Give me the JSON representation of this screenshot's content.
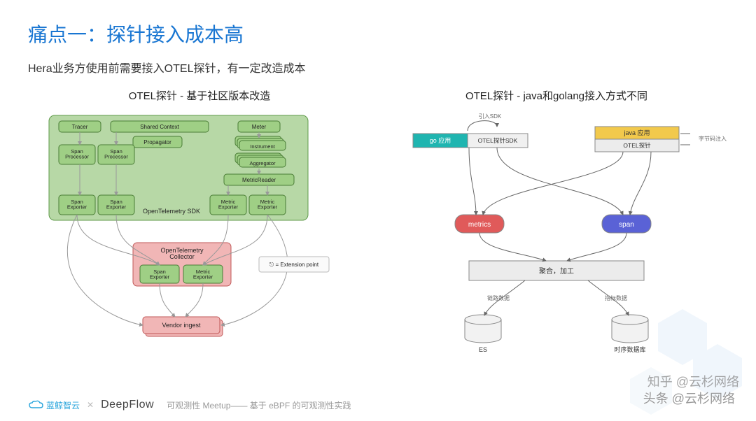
{
  "title": "痛点一：探针接入成本高",
  "subtitle": "Hera业务方使用前需要接入OTEL探针，有一定改造成本",
  "left": {
    "heading": "OTEL探针 - 基于社区版本改造",
    "colors": {
      "sdkFill": "#b7d8a6",
      "sdkStroke": "#5f9a4a",
      "boxFill": "#9fcf85",
      "boxStroke": "#4a7c36",
      "collFill": "#f1b6b6",
      "collStroke": "#c05858",
      "note": "#fafafa"
    },
    "boxes": {
      "tracer": "Tracer",
      "sharedCtx": "Shared Context",
      "meter": "Meter",
      "propagator": "Propagator",
      "spanProc1": "Span\nProcessor",
      "spanProc2": "Span\nProcessor",
      "instrument": "Instrument",
      "aggregator": "Aggregator",
      "metricReader": "MetricReader",
      "spanExp1": "Span\nExporter",
      "spanExp2": "Span\nExporter",
      "metricExp1": "Metric\nExporter",
      "metricExp2": "Metric\nExporter",
      "sdkLabel": "OpenTelemetry SDK",
      "collector": "OpenTelemetry\nCollector",
      "cSpanExp": "Span\nExporter",
      "cMetricExp": "Metric\nExporter",
      "vendor": "Vendor ingest",
      "extNote": "⎋ = Extension point"
    }
  },
  "right": {
    "heading": "OTEL探针 - java和golang接入方式不同",
    "colors": {
      "goFill": "#1fb5b0",
      "sdkFill": "#f0f0f0",
      "javaFill": "#f2c94c",
      "otelFill": "#ececec",
      "metricsFill": "#e05a5a",
      "spanFill": "#5a62d6",
      "aggFill": "#ececec",
      "cylFill": "#f2f2f2",
      "stroke": "#888",
      "line": "#666",
      "textDark": "#333"
    },
    "labels": {
      "go": "go 应用",
      "otelSdk": "OTEL探针SDK",
      "java": "java 应用",
      "otelJava": "OTEL探针",
      "importSdk": "引入SDK",
      "bytecode": "字节码注入",
      "metrics": "metrics",
      "span": "span",
      "agg": "聚合，加工",
      "linkData": "链路数据",
      "metricData": "指标数据",
      "es": "ES",
      "tsdb": "时序数据库"
    }
  },
  "footer": {
    "brand1": "蓝鲸智云",
    "brand2": "DeepFlow",
    "tagline": "可观测性 Meetup—— 基于 eBPF 的可观测性实践"
  },
  "watermark": {
    "line1": "知乎 @云杉网络",
    "line2": "头条 @云杉网络"
  }
}
